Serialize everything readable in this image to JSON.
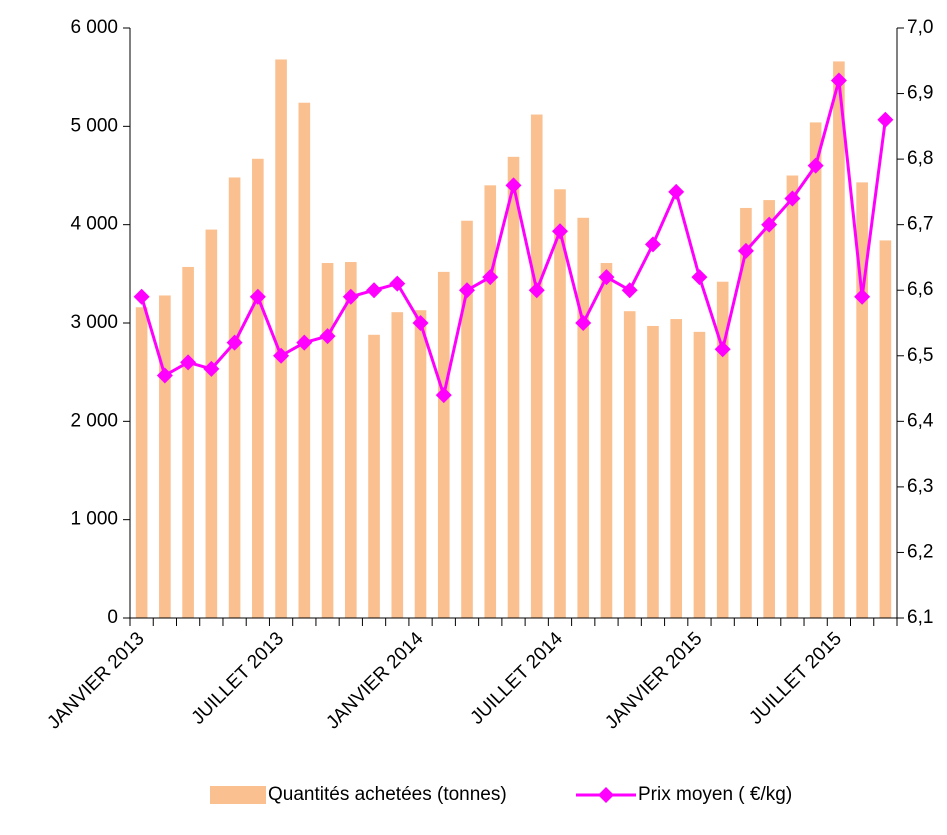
{
  "chart_data": {
    "type": "bar-line",
    "categories": [
      "JANVIER 2013",
      null,
      null,
      null,
      null,
      null,
      "JUILLET 2013",
      null,
      null,
      null,
      null,
      null,
      "JANVIER 2014",
      null,
      null,
      null,
      null,
      null,
      "JUILLET 2014",
      null,
      null,
      null,
      null,
      null,
      "JANVIER 2015",
      null,
      null,
      null,
      null,
      null,
      "JUILLET 2015",
      null,
      null
    ],
    "series": [
      {
        "name": "Quantités achetées (tonnes)",
        "type": "bar",
        "color": "#fac090",
        "values": [
          3160,
          3280,
          3570,
          3950,
          4480,
          4670,
          5680,
          5240,
          3610,
          3620,
          2880,
          3110,
          3130,
          3520,
          4040,
          4400,
          4690,
          5120,
          4360,
          4070,
          3610,
          3120,
          2970,
          3040,
          2910,
          3420,
          4170,
          4250,
          4500,
          5040,
          5660,
          4430,
          3840
        ]
      },
      {
        "name": "Prix moyen ( €/kg)",
        "type": "line",
        "axis": "y2",
        "color": "#ff00ff",
        "values": [
          6.59,
          6.47,
          6.49,
          6.48,
          6.52,
          6.59,
          6.5,
          6.52,
          6.53,
          6.59,
          6.6,
          6.61,
          6.55,
          6.44,
          6.6,
          6.62,
          6.76,
          6.6,
          6.69,
          6.55,
          6.62,
          6.6,
          6.67,
          6.75,
          6.62,
          6.51,
          6.66,
          6.7,
          6.74,
          6.79,
          6.92,
          6.59,
          6.86
        ]
      }
    ],
    "ylim": [
      0,
      6000
    ],
    "yticks": [
      0,
      {
        "value": 1000,
        "label": "1 000"
      },
      {
        "value": 2000,
        "label": "2 000"
      },
      {
        "value": 3000,
        "label": "3 000"
      },
      {
        "value": 4000,
        "label": "4 000"
      },
      {
        "value": 5000,
        "label": "5 000"
      },
      {
        "value": 6000,
        "label": "6 000"
      }
    ],
    "y2lim": [
      6.1,
      7.0
    ],
    "y2ticks": [
      {
        "value": 6.1,
        "label": "6,1"
      },
      {
        "value": 6.2,
        "label": "6,2"
      },
      {
        "value": 6.3,
        "label": "6,3"
      },
      {
        "value": 6.4,
        "label": "6,4"
      },
      {
        "value": 6.5,
        "label": "6,5"
      },
      {
        "value": 6.6,
        "label": "6,6"
      },
      {
        "value": 6.7,
        "label": "6,7"
      },
      {
        "value": 6.8,
        "label": "6,8"
      },
      {
        "value": 6.9,
        "label": "6,9"
      },
      {
        "value": 7.0,
        "label": "7,0"
      }
    ],
    "legend": "bottom"
  }
}
